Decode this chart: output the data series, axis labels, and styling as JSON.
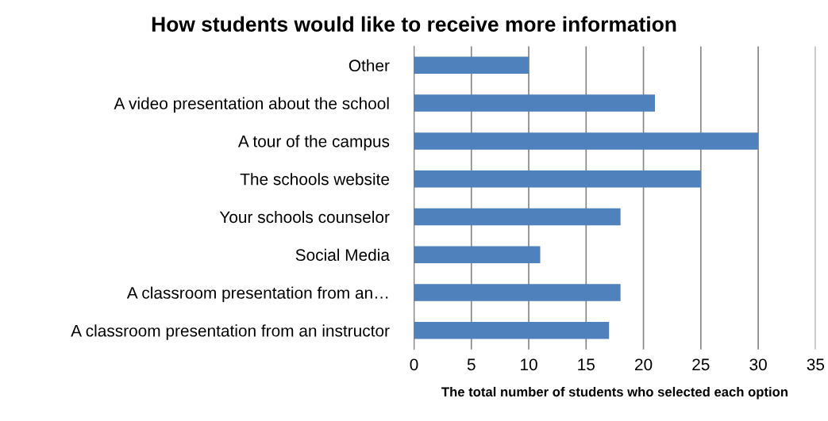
{
  "chart_data": {
    "type": "bar",
    "orientation": "horizontal",
    "title": "How students would like to receive more information",
    "xlabel": "The total number of students who selected each option",
    "categories": [
      "Other",
      "A video presentation about the school",
      "A tour of the campus",
      "The schools website",
      "Your schools counselor",
      "Social Media",
      "A classroom presentation from an…",
      "A classroom presentation from an instructor"
    ],
    "values": [
      10,
      21,
      30,
      25,
      18,
      11,
      18,
      17
    ],
    "color": "#4f81bd",
    "xlim": [
      0,
      35
    ],
    "xticks": [
      0,
      5,
      10,
      15,
      20,
      25,
      30,
      35
    ],
    "grid": "x",
    "legend": false
  }
}
